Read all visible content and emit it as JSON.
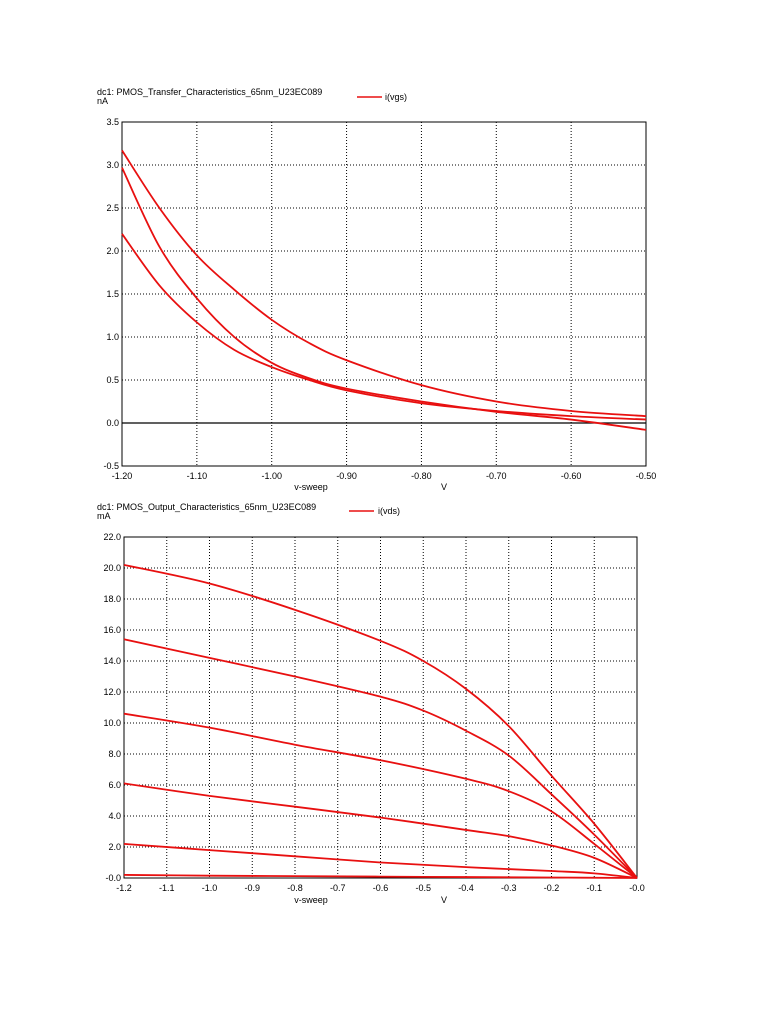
{
  "chart_data": [
    {
      "type": "line",
      "title": "dc1: PMOS_Transfer_Characteristics_65nm_U23EC089",
      "yunit": "nA",
      "legend": "i(vgs)",
      "xlabel": "v-sweep",
      "xunit": "V",
      "xlim": [
        -1.2,
        -0.5
      ],
      "ylim": [
        -0.5,
        3.5
      ],
      "xticks": [
        -1.2,
        -1.1,
        -1.0,
        -0.9,
        -0.8,
        -0.7,
        -0.6,
        -0.5
      ],
      "xtick_labels": [
        "-1.20",
        "-1.10",
        "-1.00",
        "-0.90",
        "-0.80",
        "-0.70",
        "-0.60",
        "-0.50"
      ],
      "yticks": [
        -0.5,
        0.0,
        0.5,
        1.0,
        1.5,
        2.0,
        2.5,
        3.0,
        3.5
      ],
      "ytick_labels": [
        "-0.5",
        "0.0",
        "0.5",
        "1.0",
        "1.5",
        "2.0",
        "2.5",
        "3.0",
        "3.5"
      ],
      "grid": true,
      "zero_line": true,
      "legend_position": "top-center",
      "series_color": "#e81010",
      "series": [
        {
          "x": [
            -1.2,
            -1.15,
            -1.1,
            -1.05,
            -1.0,
            -0.95,
            -0.9,
            -0.8,
            -0.7,
            -0.6,
            -0.5
          ],
          "values": [
            3.17,
            2.5,
            1.95,
            1.55,
            1.2,
            0.93,
            0.73,
            0.44,
            0.25,
            0.14,
            0.08
          ]
        },
        {
          "x": [
            -1.2,
            -1.15,
            -1.1,
            -1.05,
            -1.0,
            -0.95,
            -0.9,
            -0.8,
            -0.7,
            -0.6,
            -0.5
          ],
          "values": [
            2.97,
            2.05,
            1.45,
            1.0,
            0.7,
            0.52,
            0.4,
            0.25,
            0.13,
            0.04,
            -0.08
          ]
        },
        {
          "x": [
            -1.2,
            -1.15,
            -1.1,
            -1.05,
            -1.0,
            -0.95,
            -0.9,
            -0.8,
            -0.7,
            -0.6,
            -0.5
          ],
          "values": [
            2.2,
            1.6,
            1.17,
            0.85,
            0.65,
            0.5,
            0.38,
            0.23,
            0.14,
            0.08,
            0.04
          ]
        }
      ]
    },
    {
      "type": "line",
      "title": "dc1: PMOS_Output_Characteristics_65nm_U23EC089",
      "yunit": "mA",
      "legend": "i(vds)",
      "xlabel": "v-sweep",
      "xunit": "V",
      "xlim": [
        -1.2,
        0.0
      ],
      "ylim": [
        -0.0,
        22.0
      ],
      "xticks": [
        -1.2,
        -1.1,
        -1.0,
        -0.9,
        -0.8,
        -0.7,
        -0.6,
        -0.5,
        -0.4,
        -0.3,
        -0.2,
        -0.1,
        0.0
      ],
      "xtick_labels": [
        "-1.2",
        "-1.1",
        "-1.0",
        "-0.9",
        "-0.8",
        "-0.7",
        "-0.6",
        "-0.5",
        "-0.4",
        "-0.3",
        "-0.2",
        "-0.1",
        "-0.0"
      ],
      "yticks": [
        0,
        2,
        4,
        6,
        8,
        10,
        12,
        14,
        16,
        18,
        20,
        22
      ],
      "ytick_labels": [
        "-0.0",
        "2.0",
        "4.0",
        "6.0",
        "8.0",
        "10.0",
        "12.0",
        "14.0",
        "16.0",
        "18.0",
        "20.0",
        "22.0"
      ],
      "grid": true,
      "legend_position": "top-center",
      "series_color": "#e81010",
      "series": [
        {
          "x": [
            -1.2,
            -1.0,
            -0.8,
            -0.6,
            -0.5,
            -0.4,
            -0.3,
            -0.2,
            -0.1,
            0.0
          ],
          "values": [
            20.2,
            19.0,
            17.3,
            15.3,
            14.0,
            12.2,
            9.8,
            6.6,
            3.5,
            0.0
          ]
        },
        {
          "x": [
            -1.2,
            -1.0,
            -0.8,
            -0.6,
            -0.5,
            -0.4,
            -0.3,
            -0.2,
            -0.1,
            0.0
          ],
          "values": [
            15.4,
            14.2,
            13.0,
            11.7,
            10.8,
            9.5,
            7.9,
            5.4,
            2.8,
            0.0
          ]
        },
        {
          "x": [
            -1.2,
            -1.0,
            -0.8,
            -0.6,
            -0.4,
            -0.3,
            -0.2,
            -0.1,
            0.0
          ],
          "values": [
            10.6,
            9.7,
            8.6,
            7.6,
            6.4,
            5.6,
            4.3,
            2.2,
            0.0
          ]
        },
        {
          "x": [
            -1.2,
            -1.0,
            -0.8,
            -0.6,
            -0.4,
            -0.3,
            -0.2,
            -0.1,
            0.0
          ],
          "values": [
            6.1,
            5.3,
            4.6,
            3.9,
            3.1,
            2.7,
            2.1,
            1.3,
            0.0
          ]
        },
        {
          "x": [
            -1.2,
            -1.0,
            -0.8,
            -0.6,
            -0.4,
            -0.2,
            -0.1,
            0.0
          ],
          "values": [
            2.2,
            1.8,
            1.4,
            1.0,
            0.7,
            0.45,
            0.3,
            0.0
          ]
        },
        {
          "x": [
            -1.2,
            -1.0,
            -0.8,
            -0.6,
            -0.4,
            -0.2,
            0.0
          ],
          "values": [
            0.2,
            0.15,
            0.12,
            0.09,
            0.06,
            0.03,
            0.0
          ]
        }
      ]
    }
  ]
}
